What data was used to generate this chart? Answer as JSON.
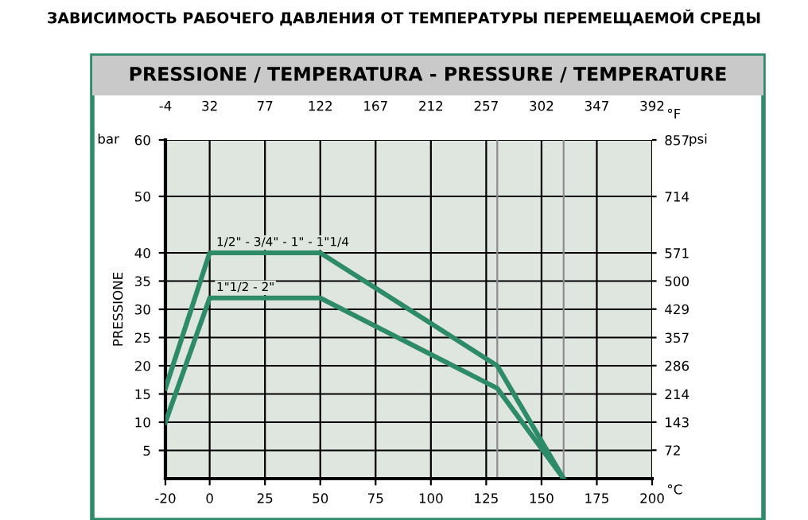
{
  "chart_data": {
    "type": "line",
    "title": "ЗАВИСИМОСТЬ РАБОЧЕГО ДАВЛЕНИЯ ОТ ТЕМПЕРАТУРЫ ПЕРЕМЕЩАЕМОЙ СРЕДЫ",
    "subtitle": "PRESSIONE / TEMPERATURA - PRESSURE / TEMPERATURE",
    "xlabel": "°C",
    "x2label": "°F",
    "ylabel": "PRESSIONE",
    "y2label": "psi",
    "annotations": [
      "bar"
    ],
    "x": [
      -20,
      0,
      50,
      130,
      160
    ],
    "series": [
      {
        "name": "1/2\" - 3/4\" - 1\" - 1\"1/4",
        "color": "#2e8b6a",
        "values": [
          16,
          40,
          40,
          20,
          0
        ]
      },
      {
        "name": "1\"1/2 - 2\"",
        "color": "#2e8b6a",
        "values": [
          10,
          32,
          32,
          16,
          0
        ]
      }
    ],
    "xlim": [
      -20,
      200
    ],
    "xticks": [
      -20,
      0,
      25,
      50,
      75,
      100,
      125,
      150,
      175,
      200
    ],
    "x2lim": [
      -4,
      392
    ],
    "x2ticks": [
      -4,
      32,
      77,
      122,
      167,
      212,
      257,
      302,
      347,
      392
    ],
    "ylim": [
      0,
      60
    ],
    "yticks": [
      5,
      10,
      15,
      20,
      25,
      30,
      35,
      40,
      50,
      60
    ],
    "y2lim": [
      0,
      857
    ],
    "y2ticks": [
      72,
      143,
      214,
      286,
      357,
      429,
      500,
      571,
      714,
      857
    ],
    "ref_lines": [
      {
        "axis": "x",
        "value": 130,
        "color": "#8c8c8c"
      },
      {
        "axis": "x",
        "value": 160,
        "color": "#8c8c8c"
      }
    ],
    "grid": true,
    "legend": false,
    "marker": "none",
    "line_style": "solid"
  }
}
